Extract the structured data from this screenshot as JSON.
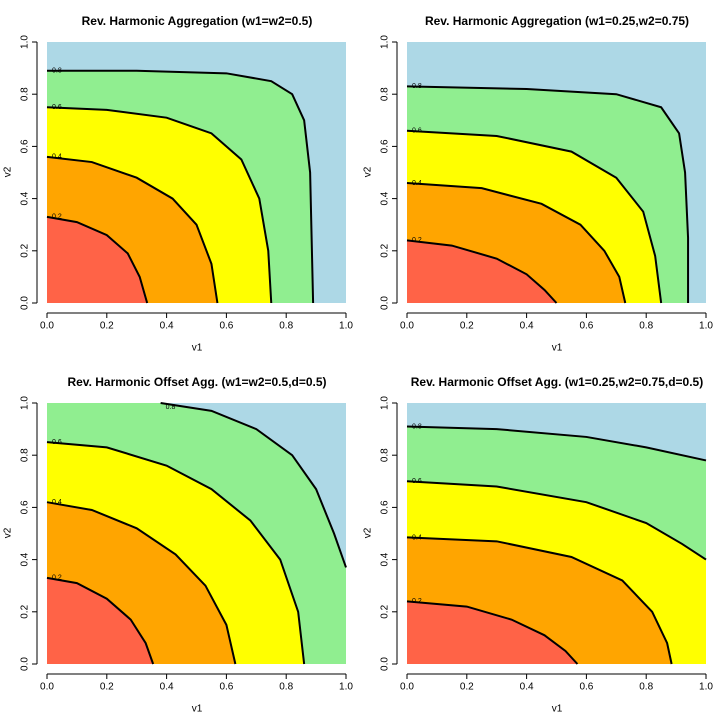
{
  "chart_data": [
    {
      "type": "contour",
      "title": "Rev. Harmonic Aggregation (w1=w2=0.5)",
      "xlabel": "v1",
      "ylabel": "v2",
      "xlim": [
        0,
        1
      ],
      "ylim": [
        0,
        1
      ],
      "xticks": [
        {
          "value": 0,
          "label": "0.0"
        },
        0.2,
        0.4,
        0.6,
        0.8,
        {
          "value": 1,
          "label": "1.0"
        }
      ],
      "yticks": [
        {
          "value": 0,
          "label": "0.0"
        },
        0.2,
        0.4,
        0.6,
        0.8,
        {
          "value": 1,
          "label": "1.0"
        }
      ],
      "colors": [
        "#ff6347",
        "#ffa500",
        "#ffff00",
        "#90ee90",
        "#add8e6"
      ],
      "contours": [
        {
          "level": 0.2,
          "x": [
            0,
            0.1,
            0.2,
            0.27,
            0.31,
            0.335
          ],
          "y": [
            0.33,
            0.31,
            0.26,
            0.19,
            0.1,
            0
          ]
        },
        {
          "level": 0.4,
          "x": [
            0,
            0.15,
            0.3,
            0.42,
            0.5,
            0.55,
            0.57
          ],
          "y": [
            0.56,
            0.54,
            0.48,
            0.4,
            0.3,
            0.15,
            0
          ]
        },
        {
          "level": 0.6,
          "x": [
            0,
            0.2,
            0.4,
            0.55,
            0.65,
            0.71,
            0.74,
            0.75
          ],
          "y": [
            0.75,
            0.74,
            0.71,
            0.65,
            0.55,
            0.4,
            0.2,
            0
          ]
        },
        {
          "level": 0.8,
          "x": [
            0,
            0.3,
            0.6,
            0.75,
            0.82,
            0.86,
            0.88,
            0.89
          ],
          "y": [
            0.89,
            0.89,
            0.88,
            0.85,
            0.8,
            0.7,
            0.5,
            0
          ]
        }
      ]
    },
    {
      "type": "contour",
      "title": "Rev. Harmonic Aggregation (w1=0.25,w2=0.75)",
      "xlabel": "v1",
      "ylabel": "v2",
      "xlim": [
        0,
        1
      ],
      "ylim": [
        0,
        1
      ],
      "xticks": [
        {
          "value": 0,
          "label": "0.0"
        },
        0.2,
        0.4,
        0.6,
        0.8,
        {
          "value": 1,
          "label": "1.0"
        }
      ],
      "yticks": [
        {
          "value": 0,
          "label": "0.0"
        },
        0.2,
        0.4,
        0.6,
        0.8,
        {
          "value": 1,
          "label": "1.0"
        }
      ],
      "colors": [
        "#ff6347",
        "#ffa500",
        "#ffff00",
        "#90ee90",
        "#add8e6"
      ],
      "contours": [
        {
          "level": 0.2,
          "x": [
            0,
            0.15,
            0.3,
            0.4,
            0.46,
            0.5
          ],
          "y": [
            0.24,
            0.22,
            0.17,
            0.11,
            0.05,
            0
          ]
        },
        {
          "level": 0.4,
          "x": [
            0,
            0.25,
            0.45,
            0.58,
            0.66,
            0.71,
            0.73
          ],
          "y": [
            0.46,
            0.44,
            0.38,
            0.3,
            0.2,
            0.1,
            0
          ]
        },
        {
          "level": 0.6,
          "x": [
            0,
            0.3,
            0.55,
            0.7,
            0.79,
            0.83,
            0.85
          ],
          "y": [
            0.66,
            0.64,
            0.58,
            0.48,
            0.35,
            0.18,
            0
          ]
        },
        {
          "level": 0.8,
          "x": [
            0,
            0.4,
            0.7,
            0.85,
            0.91,
            0.93,
            0.94,
            0.94
          ],
          "y": [
            0.83,
            0.82,
            0.8,
            0.75,
            0.65,
            0.5,
            0.25,
            0
          ]
        }
      ]
    },
    {
      "type": "contour",
      "title": "Rev. Harmonic Offset Agg. (w1=w2=0.5,d=0.5)",
      "xlabel": "v1",
      "ylabel": "v2",
      "xlim": [
        0,
        1
      ],
      "ylim": [
        0,
        1
      ],
      "xticks": [
        {
          "value": 0,
          "label": "0.0"
        },
        0.2,
        0.4,
        0.6,
        0.8,
        {
          "value": 1,
          "label": "1.0"
        }
      ],
      "yticks": [
        {
          "value": 0,
          "label": "0.0"
        },
        0.2,
        0.4,
        0.6,
        0.8,
        {
          "value": 1,
          "label": "1.0"
        }
      ],
      "colors": [
        "#ff6347",
        "#ffa500",
        "#ffff00",
        "#90ee90",
        "#add8e6"
      ],
      "contours": [
        {
          "level": 0.2,
          "x": [
            0,
            0.1,
            0.2,
            0.28,
            0.33,
            0.355
          ],
          "y": [
            0.33,
            0.31,
            0.25,
            0.17,
            0.08,
            0
          ]
        },
        {
          "level": 0.4,
          "x": [
            0,
            0.15,
            0.3,
            0.43,
            0.53,
            0.6,
            0.63
          ],
          "y": [
            0.62,
            0.59,
            0.52,
            0.42,
            0.3,
            0.15,
            0
          ]
        },
        {
          "level": 0.6,
          "x": [
            0,
            0.2,
            0.4,
            0.55,
            0.68,
            0.78,
            0.84,
            0.86
          ],
          "y": [
            0.85,
            0.83,
            0.76,
            0.67,
            0.55,
            0.4,
            0.2,
            0
          ]
        },
        {
          "level": 0.8,
          "x": [
            0.38,
            0.55,
            0.7,
            0.82,
            0.9,
            0.96,
            1.0
          ],
          "y": [
            1.0,
            0.97,
            0.9,
            0.8,
            0.67,
            0.5,
            0.37
          ]
        }
      ]
    },
    {
      "type": "contour",
      "title": "Rev. Harmonic Offset Agg. (w1=0.25,w2=0.75,d=0.5)",
      "xlabel": "v1",
      "ylabel": "v2",
      "xlim": [
        0,
        1
      ],
      "ylim": [
        0,
        1
      ],
      "xticks": [
        {
          "value": 0,
          "label": "0.0"
        },
        0.2,
        0.4,
        0.6,
        0.8,
        {
          "value": 1,
          "label": "1.0"
        }
      ],
      "yticks": [
        {
          "value": 0,
          "label": "0.0"
        },
        0.2,
        0.4,
        0.6,
        0.8,
        {
          "value": 1,
          "label": "1.0"
        }
      ],
      "colors": [
        "#ff6347",
        "#ffa500",
        "#ffff00",
        "#90ee90",
        "#add8e6"
      ],
      "contours": [
        {
          "level": 0.2,
          "x": [
            0,
            0.2,
            0.35,
            0.46,
            0.53,
            0.57
          ],
          "y": [
            0.24,
            0.22,
            0.17,
            0.11,
            0.05,
            0
          ]
        },
        {
          "level": 0.4,
          "x": [
            0,
            0.3,
            0.55,
            0.72,
            0.82,
            0.87,
            0.885
          ],
          "y": [
            0.485,
            0.47,
            0.41,
            0.32,
            0.2,
            0.08,
            0
          ]
        },
        {
          "level": 0.6,
          "x": [
            0,
            0.3,
            0.6,
            0.8,
            0.92,
            1.0
          ],
          "y": [
            0.7,
            0.68,
            0.62,
            0.54,
            0.46,
            0.4
          ]
        },
        {
          "level": 0.8,
          "x": [
            0,
            0.3,
            0.6,
            0.8,
            1.0
          ],
          "y": [
            0.91,
            0.9,
            0.87,
            0.83,
            0.78
          ]
        }
      ]
    }
  ]
}
